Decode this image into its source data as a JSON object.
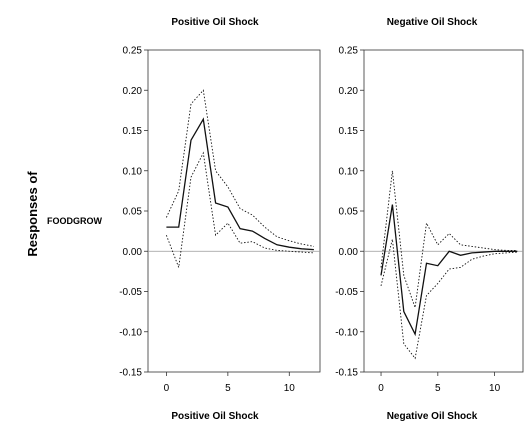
{
  "figure": {
    "ylabel": "Responses of",
    "row_label": "FOODGROW"
  },
  "chart_data": [
    {
      "type": "line",
      "title": "Positive Oil Shock",
      "xlabel": "Positive Oil Shock",
      "x": [
        0,
        1,
        2,
        3,
        4,
        5,
        6,
        7,
        8,
        9,
        10,
        11,
        12
      ],
      "xticks": [
        0,
        5,
        10
      ],
      "xlim": [
        -1.5,
        12.5
      ],
      "ylim": [
        -0.15,
        0.25
      ],
      "yticks": [
        -0.15,
        -0.1,
        -0.05,
        0.0,
        0.05,
        0.1,
        0.15,
        0.2,
        0.25
      ],
      "ytick_labels": [
        "-0.15",
        "-0.10",
        "-0.05",
        "0.00",
        "0.05",
        "0.10",
        "0.15",
        "0.20",
        "0.25"
      ],
      "zero_line": true,
      "series": [
        {
          "style": "solid",
          "values": [
            0.03,
            0.03,
            0.138,
            0.164,
            0.06,
            0.055,
            0.028,
            0.025,
            0.016,
            0.008,
            0.005,
            0.003,
            0.002
          ]
        },
        {
          "style": "dotted",
          "values": [
            0.042,
            0.075,
            0.183,
            0.2,
            0.1,
            0.08,
            0.053,
            0.045,
            0.03,
            0.018,
            0.013,
            0.009,
            0.006
          ]
        },
        {
          "style": "dotted",
          "values": [
            0.02,
            -0.02,
            0.092,
            0.122,
            0.02,
            0.035,
            0.01,
            0.012,
            0.004,
            0.001,
            0.0,
            -0.001,
            -0.002
          ]
        }
      ]
    },
    {
      "type": "line",
      "title": "Negative Oil Shock",
      "xlabel": "Negative Oil Shock",
      "x": [
        0,
        1,
        2,
        3,
        4,
        5,
        6,
        7,
        8,
        9,
        10,
        11,
        12
      ],
      "xticks": [
        0,
        5,
        10
      ],
      "xlim": [
        -1.5,
        12.5
      ],
      "ylim": [
        -0.15,
        0.25
      ],
      "yticks": [
        -0.15,
        -0.1,
        -0.05,
        0.0,
        0.05,
        0.1,
        0.15,
        0.2,
        0.25
      ],
      "ytick_labels": [
        "-0.15",
        "-0.10",
        "-0.05",
        "0.00",
        "0.05",
        "0.10",
        "0.15",
        "0.20",
        "0.25"
      ],
      "zero_line": true,
      "series": [
        {
          "style": "solid",
          "values": [
            -0.03,
            0.058,
            -0.075,
            -0.103,
            -0.015,
            -0.018,
            0.0,
            -0.005,
            -0.002,
            -0.001,
            0.0,
            0.0,
            0.0
          ]
        },
        {
          "style": "dotted",
          "values": [
            -0.02,
            0.1,
            -0.03,
            -0.07,
            0.035,
            0.008,
            0.022,
            0.008,
            0.006,
            0.004,
            0.002,
            0.001,
            0.001
          ]
        },
        {
          "style": "dotted",
          "values": [
            -0.043,
            0.015,
            -0.115,
            -0.133,
            -0.055,
            -0.04,
            -0.022,
            -0.02,
            -0.01,
            -0.006,
            -0.003,
            -0.002,
            -0.001
          ]
        }
      ]
    }
  ]
}
